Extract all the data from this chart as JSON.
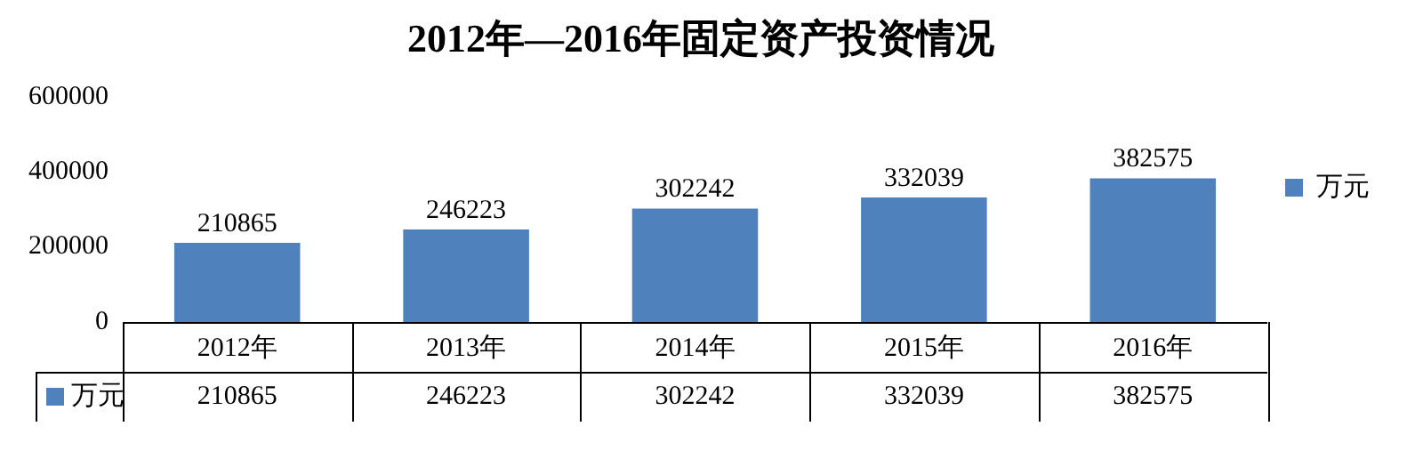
{
  "chart_data": {
    "type": "bar",
    "title": "2012年—2016年固定资产投资情况",
    "categories": [
      "2012年",
      "2013年",
      "2014年",
      "2015年",
      "2016年"
    ],
    "series": [
      {
        "name": "万元",
        "color": "#4f81bd",
        "values": [
          210865,
          246223,
          302242,
          332039,
          382575
        ]
      }
    ],
    "annotations": [
      "万元",
      "210865",
      "246223",
      "302242",
      "332039",
      "382575"
    ],
    "ylim": [
      0,
      600000
    ],
    "yticks": [
      0,
      200000,
      400000,
      600000
    ],
    "grid": false,
    "legend": "right",
    "data_labels": true
  }
}
